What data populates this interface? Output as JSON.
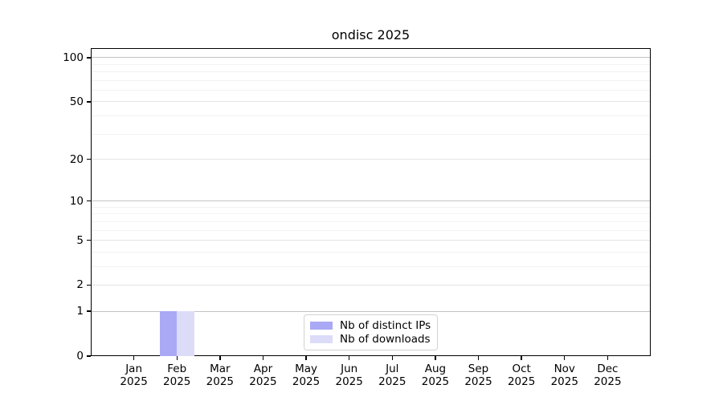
{
  "chart_data": {
    "type": "bar",
    "title": "ondisc 2025",
    "months": [
      "Jan",
      "Feb",
      "Mar",
      "Apr",
      "May",
      "Jun",
      "Jul",
      "Aug",
      "Sep",
      "Oct",
      "Nov",
      "Dec"
    ],
    "year": "2025",
    "series": [
      {
        "name": "Nb of distinct IPs",
        "color": "#a9a9f5",
        "values": [
          0,
          1,
          0,
          0,
          0,
          0,
          0,
          0,
          0,
          0,
          0,
          0
        ]
      },
      {
        "name": "Nb of downloads",
        "color": "#dcdcf9",
        "values": [
          0,
          1,
          0,
          0,
          0,
          0,
          0,
          0,
          0,
          0,
          0,
          0
        ]
      }
    ],
    "y_axis": {
      "scale": "log1p",
      "ticks": [
        0,
        1,
        2,
        5,
        10,
        20,
        50,
        100
      ],
      "minor_ticks": [
        3,
        4,
        6,
        7,
        8,
        9,
        30,
        40,
        60,
        70,
        80,
        90
      ],
      "ylim": [
        0,
        116
      ]
    },
    "x_axis": {
      "xlim": [
        -1,
        12
      ],
      "bar_width_units": 0.4
    },
    "legend": {
      "position": "lower center"
    },
    "grid": true
  }
}
